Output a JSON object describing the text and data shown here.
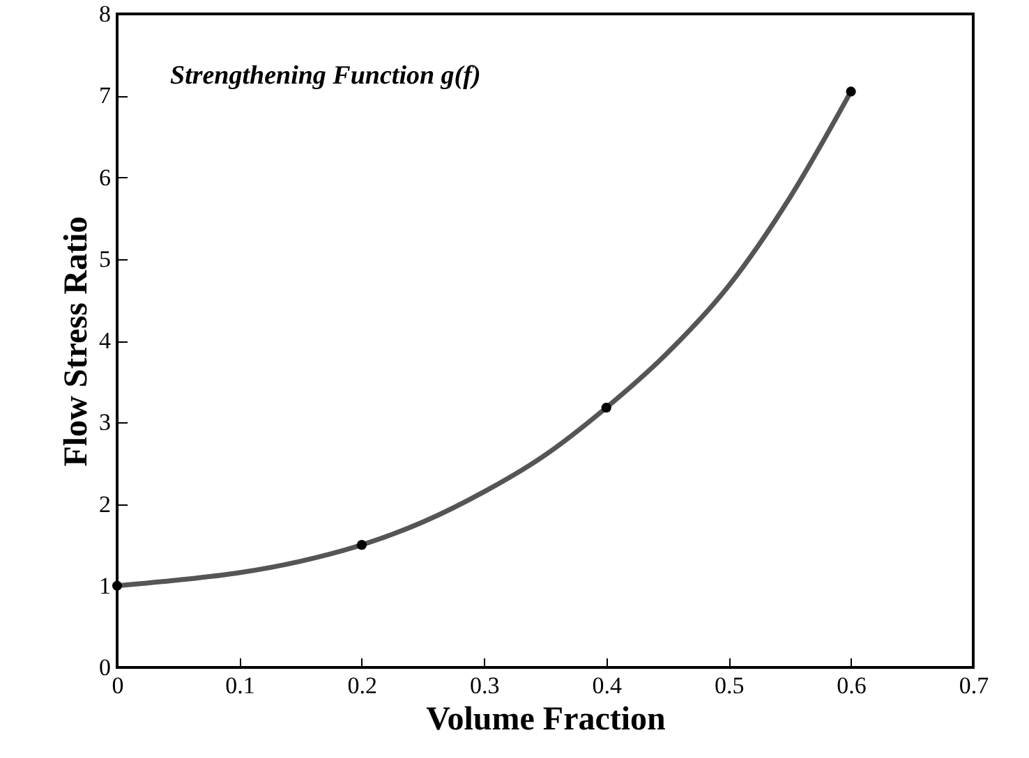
{
  "chart_data": {
    "type": "line",
    "xlabel": "Volume Fraction",
    "ylabel": "Flow Stress Ratio",
    "annotations": [
      "Strengthening Function g(f)"
    ],
    "xlim": [
      0,
      0.7
    ],
    "xticks": [
      0,
      0.1,
      0.2,
      0.3,
      0.4,
      0.5,
      0.6,
      0.7
    ],
    "ylim": [
      0,
      8
    ],
    "yticks": [
      0,
      1,
      2,
      3,
      4,
      5,
      6,
      7,
      8
    ],
    "grid": false,
    "series": [
      {
        "color": "#555555",
        "marker": "none",
        "line_style": "solid",
        "x": [
          0,
          0.05,
          0.1,
          0.15,
          0.2,
          0.25,
          0.3,
          0.35,
          0.4,
          0.45,
          0.5,
          0.55,
          0.6
        ],
        "values": [
          1,
          1.07,
          1.16,
          1.3,
          1.5,
          1.78,
          2.15,
          2.6,
          3.18,
          3.85,
          4.67,
          5.75,
          7.05
        ]
      },
      {
        "type": "scatter",
        "color": "#000000",
        "marker": "circle",
        "x": [
          0,
          0.2,
          0.4,
          0.6
        ],
        "values": [
          1,
          1.5,
          3.18,
          7.05
        ]
      }
    ]
  }
}
